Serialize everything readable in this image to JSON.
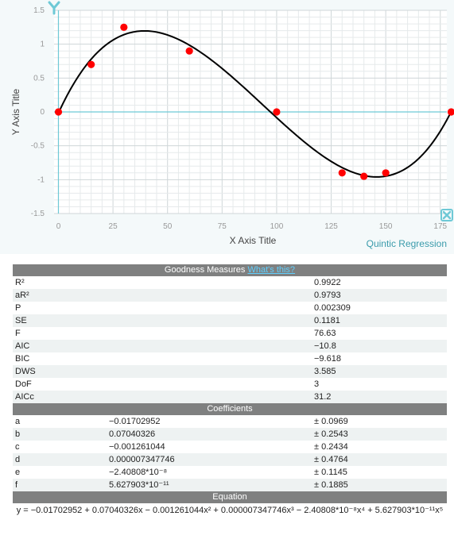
{
  "chart_data": {
    "type": "scatter",
    "xlabel": "X Axis Title",
    "ylabel": "Y Axis Title",
    "xlim": [
      -2,
      178
    ],
    "ylim": [
      -1.5,
      1.5
    ],
    "x_ticks": [
      0,
      25,
      50,
      75,
      100,
      125,
      150,
      175
    ],
    "y_ticks": [
      1.5,
      1,
      0.5,
      0,
      -0.5,
      -1,
      -1.5
    ],
    "x_tick_labels": [
      "0",
      "25",
      "50",
      "75",
      "100",
      "125",
      "150",
      "175"
    ],
    "y_tick_labels": [
      "1.5",
      "1",
      "0.5",
      "0",
      "-0.5",
      "-1",
      "-1.5"
    ],
    "grid": true,
    "points": {
      "x": [
        0,
        15,
        30,
        60,
        100,
        130,
        140,
        150,
        180
      ],
      "y": [
        0,
        0.7,
        1.25,
        0.9,
        0,
        -0.9,
        -0.95,
        -0.9,
        0
      ]
    },
    "point_color": "#ff0000",
    "curve_color": "#000000",
    "fit_label": "Quintic Regression",
    "fit_label_color": "#3a9bab",
    "coefficients": [
      -0.01702952,
      0.07040326,
      -0.001261044,
      7.347746e-06,
      -2.40808e-08,
      5.627903e-11
    ],
    "y_axis_icon": "y-letter-icon",
    "x_axis_icon": "x-letter-icon"
  },
  "results": {
    "goodness_header": "Goodness Measures",
    "whats_this": "What's this?",
    "goodness": [
      {
        "name": "R²",
        "value": "0.9922"
      },
      {
        "name": "aR²",
        "value": "0.9793"
      },
      {
        "name": "P",
        "value": "0.002309"
      },
      {
        "name": "SE",
        "value": "0.1181"
      },
      {
        "name": "F",
        "value": "76.63"
      },
      {
        "name": "AIC",
        "value": "−10.8"
      },
      {
        "name": "BIC",
        "value": "−9.618"
      },
      {
        "name": "DWS",
        "value": "3.585"
      },
      {
        "name": "DoF",
        "value": "3"
      },
      {
        "name": "AICc",
        "value": "31.2"
      }
    ],
    "coefficients_header": "Coefficients",
    "coefficients": [
      {
        "name": "a",
        "value": "−0.01702952",
        "err": "± 0.0969"
      },
      {
        "name": "b",
        "value": "0.07040326",
        "err": "± 0.2543"
      },
      {
        "name": "c",
        "value": "−0.001261044",
        "err": "± 0.2434"
      },
      {
        "name": "d",
        "value": "0.000007347746",
        "err": "± 0.4764"
      },
      {
        "name": "e",
        "value": "−2.40808*10⁻⁸",
        "err": "± 0.1145"
      },
      {
        "name": "f",
        "value": "5.627903*10⁻¹¹",
        "err": "± 0.1885"
      }
    ],
    "equation_header": "Equation",
    "equation": "y = −0.01702952 + 0.07040326x − 0.001261044x² + 0.000007347746x³ − 2.40808*10⁻⁸x⁴ + 5.627903*10⁻¹¹x⁵"
  }
}
